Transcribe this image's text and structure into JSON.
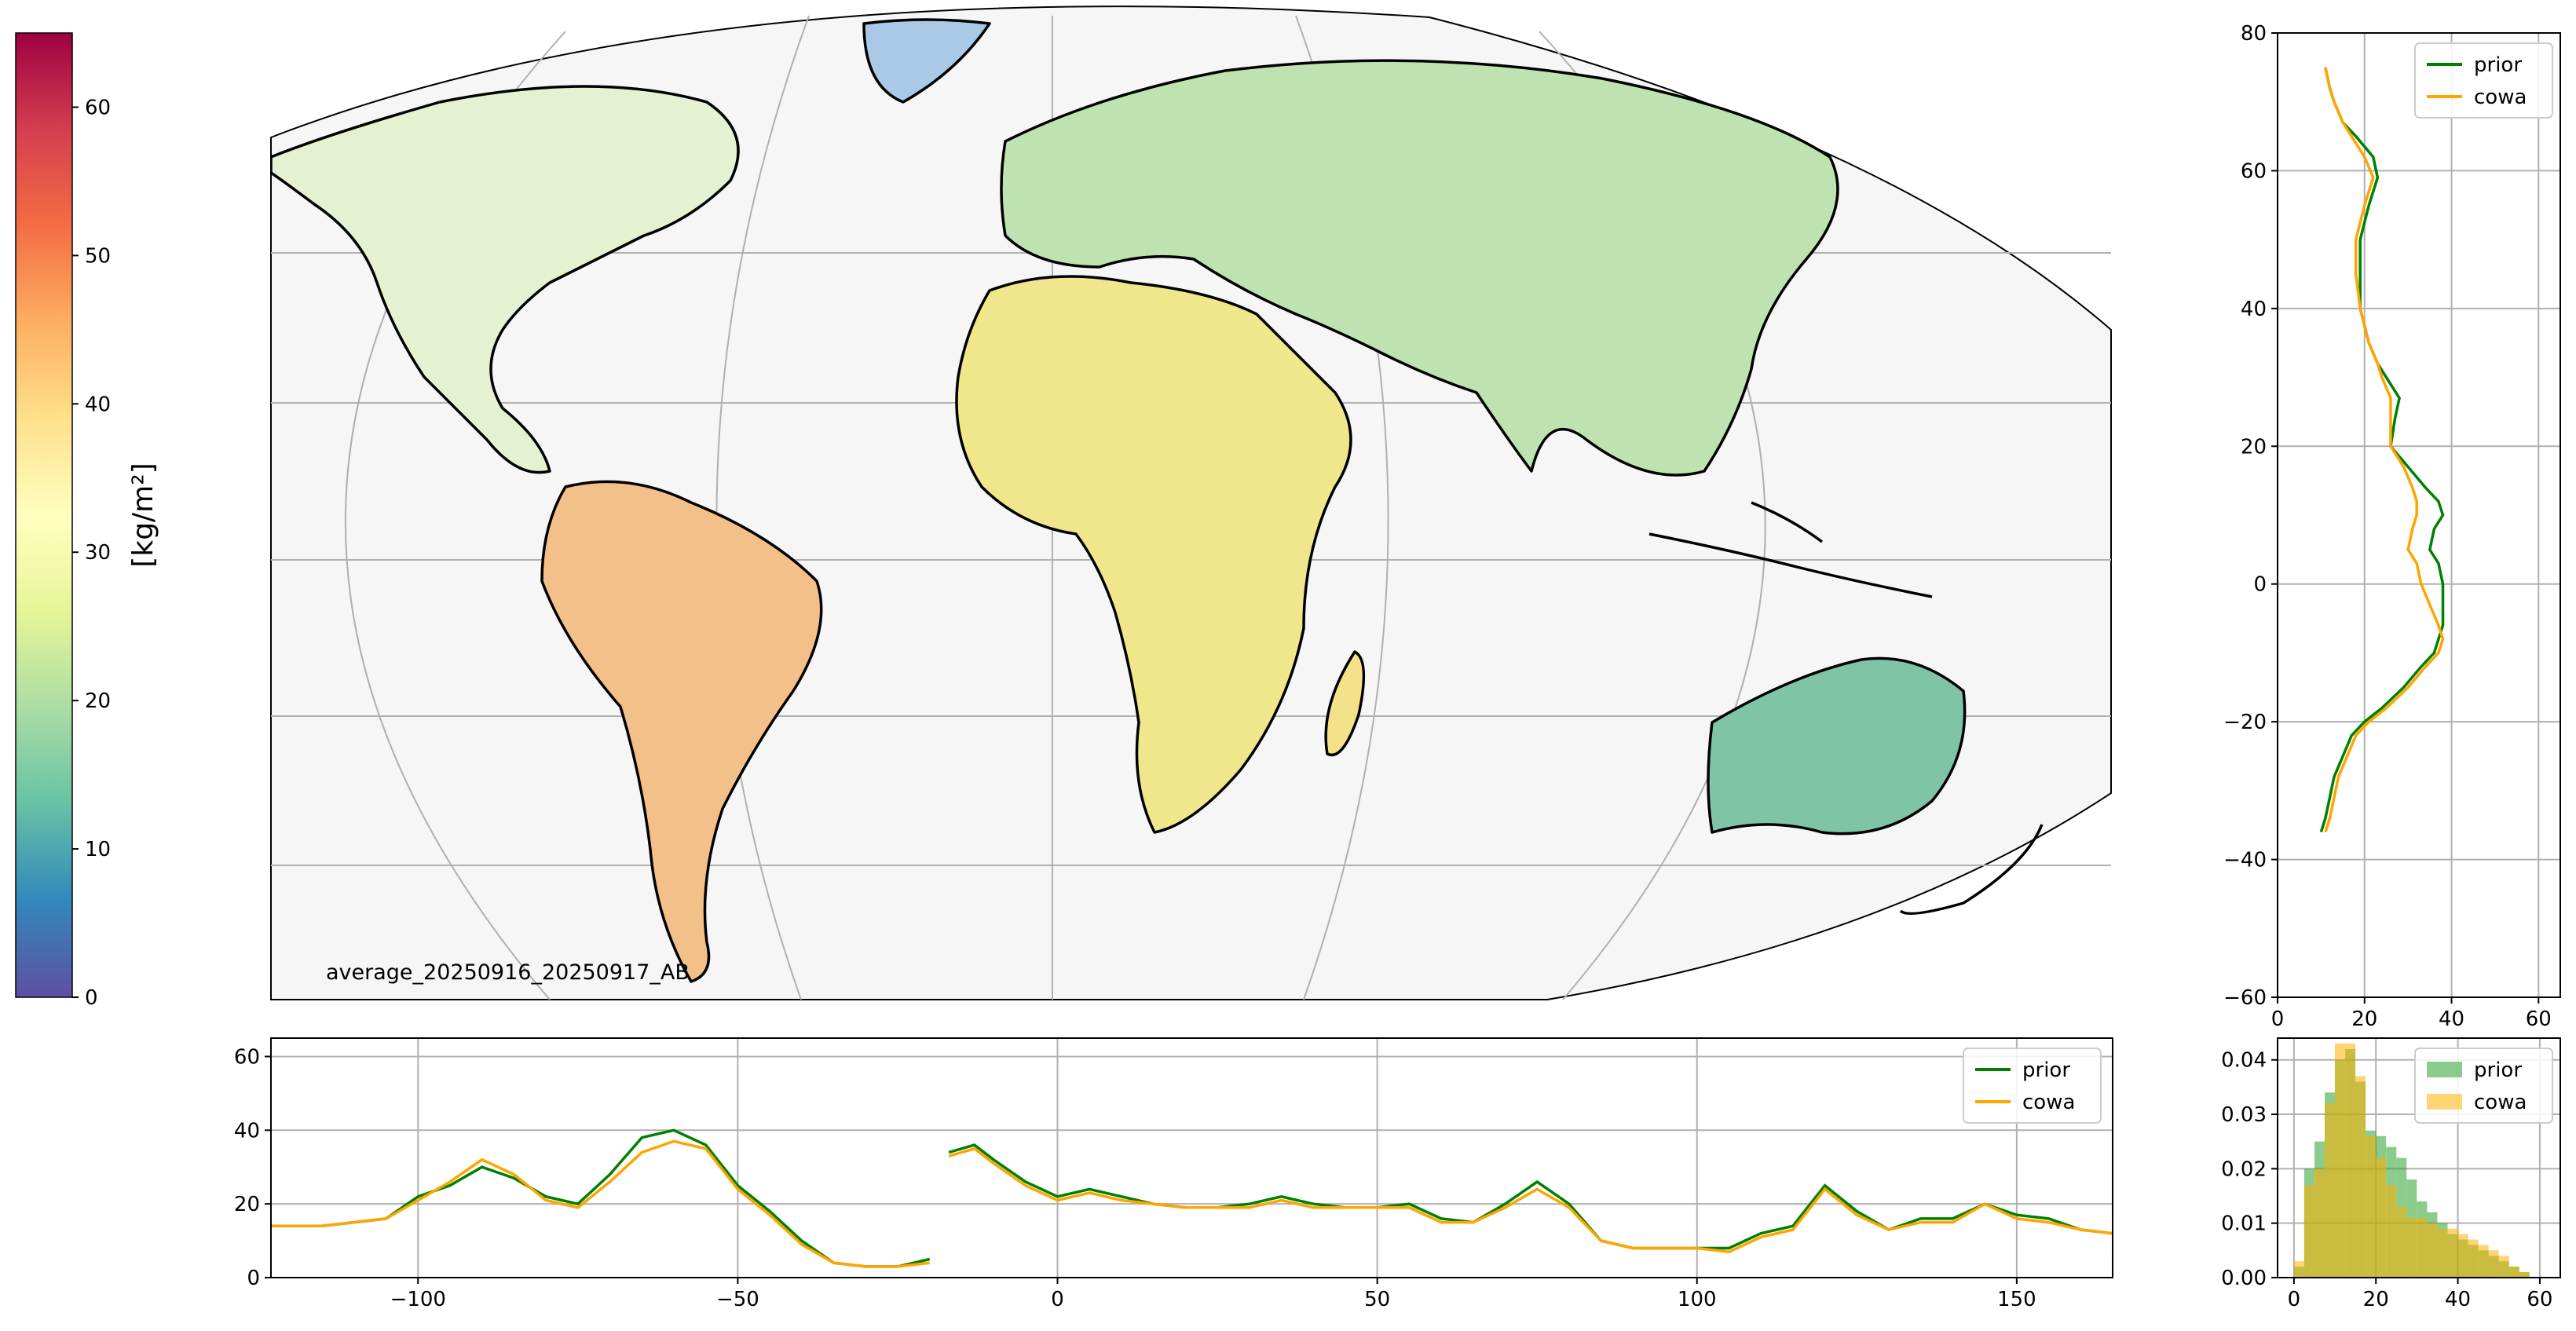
{
  "colorbar": {
    "label": "[kg/m²]",
    "ticks": [
      "0",
      "10",
      "20",
      "30",
      "40",
      "50",
      "60"
    ],
    "range": [
      0,
      65
    ],
    "colormap": [
      "#5e4fa2",
      "#3288bd",
      "#66c2a5",
      "#abdda4",
      "#e6f598",
      "#ffffbf",
      "#fee08b",
      "#fdae61",
      "#f46d43",
      "#d53e4f",
      "#9e0142"
    ]
  },
  "map": {
    "caption": "average_20250916_20250917_AB"
  },
  "chart_data": [
    {
      "type": "line",
      "name": "latitude-profile",
      "orientation": "vertical",
      "ylim": [
        -60,
        80
      ],
      "xlim": [
        0,
        65
      ],
      "yticks": [
        "−60",
        "−40",
        "−20",
        "0",
        "20",
        "40",
        "60",
        "80"
      ],
      "xticks": [
        "0",
        "20",
        "40",
        "60"
      ],
      "legend_position": "top-right",
      "grid": true,
      "lat": [
        75,
        72,
        70,
        67,
        65,
        62,
        59,
        55,
        50,
        45,
        40,
        35,
        32,
        30,
        27,
        24,
        20,
        17,
        14,
        12,
        10,
        8,
        5,
        3,
        0,
        -3,
        -6,
        -8,
        -10,
        -12,
        -15,
        -18,
        -20,
        -22,
        -25,
        -28,
        -31,
        -34,
        -36
      ],
      "series": [
        {
          "name": "prior",
          "color": "#008000",
          "values": [
            11,
            12,
            13,
            15,
            18,
            22,
            23,
            21,
            19,
            19,
            19,
            21,
            23,
            25,
            28,
            27,
            26,
            30,
            34,
            37,
            38,
            36,
            35,
            37,
            38,
            38,
            38,
            37,
            36,
            33,
            29,
            24,
            20,
            17,
            15,
            13,
            12,
            11,
            10
          ]
        },
        {
          "name": "cowa",
          "color": "#ffa500",
          "values": [
            11,
            12,
            13,
            15,
            17,
            20,
            22,
            20,
            18,
            18,
            19,
            21,
            23,
            24,
            26,
            26,
            26,
            29,
            31,
            32,
            32,
            31,
            30,
            32,
            33,
            35,
            37,
            38,
            37,
            34,
            30,
            25,
            21,
            18,
            16,
            14,
            13,
            12,
            11
          ]
        }
      ]
    },
    {
      "type": "line",
      "name": "longitude-profile",
      "xlim": [
        -123,
        165
      ],
      "ylim": [
        0,
        65
      ],
      "xticks": [
        "−100",
        "−50",
        "0",
        "50",
        "100",
        "150"
      ],
      "yticks": [
        "0",
        "20",
        "40",
        "60"
      ],
      "legend_position": "top-right",
      "grid": true,
      "x": [
        -123,
        -115,
        -110,
        -105,
        -100,
        -95,
        -90,
        -85,
        -80,
        -75,
        -70,
        -65,
        -60,
        -55,
        -50,
        -45,
        -40,
        -35,
        -30,
        -25,
        -20,
        null,
        -17,
        -13,
        -10,
        -5,
        0,
        5,
        10,
        15,
        20,
        25,
        30,
        35,
        40,
        45,
        50,
        55,
        60,
        65,
        70,
        75,
        80,
        85,
        90,
        95,
        100,
        105,
        110,
        115,
        120,
        125,
        130,
        135,
        140,
        145,
        150,
        155,
        160,
        165
      ],
      "series": [
        {
          "name": "prior",
          "color": "#008000",
          "values": [
            14,
            14,
            15,
            16,
            22,
            25,
            30,
            27,
            22,
            20,
            28,
            38,
            40,
            36,
            25,
            18,
            10,
            4,
            3,
            3,
            5,
            null,
            34,
            36,
            32,
            26,
            22,
            24,
            22,
            20,
            19,
            19,
            20,
            22,
            20,
            19,
            19,
            20,
            16,
            15,
            20,
            26,
            20,
            10,
            8,
            8,
            8,
            8,
            12,
            14,
            25,
            18,
            13,
            16,
            16,
            20,
            17,
            16,
            13,
            12
          ]
        },
        {
          "name": "cowa",
          "color": "#ffa500",
          "values": [
            14,
            14,
            15,
            16,
            21,
            26,
            32,
            28,
            21,
            19,
            26,
            34,
            37,
            35,
            24,
            17,
            9,
            4,
            3,
            3,
            4,
            null,
            33,
            35,
            31,
            25,
            21,
            23,
            21,
            20,
            19,
            19,
            19,
            21,
            19,
            19,
            19,
            19,
            15,
            15,
            19,
            24,
            19,
            10,
            8,
            8,
            8,
            7,
            11,
            13,
            24,
            17,
            13,
            15,
            15,
            20,
            16,
            15,
            13,
            12
          ]
        }
      ]
    },
    {
      "type": "bar",
      "name": "histogram",
      "xlim": [
        -4,
        65
      ],
      "ylim": [
        0,
        0.044
      ],
      "xticks": [
        "0",
        "20",
        "40",
        "60"
      ],
      "yticks": [
        "0.00",
        "0.01",
        "0.02",
        "0.03",
        "0.04"
      ],
      "legend_position": "top-right",
      "grid": true,
      "bin_edges": [
        0,
        2.5,
        5,
        7.5,
        10,
        12.5,
        15,
        17.5,
        20,
        22.5,
        25,
        27.5,
        30,
        32.5,
        35,
        37.5,
        40,
        42.5,
        45,
        47.5,
        50,
        52.5,
        55,
        57.5,
        60
      ],
      "series": [
        {
          "name": "prior",
          "color": "#2ca02c",
          "values": [
            0.002,
            0.02,
            0.025,
            0.034,
            0.04,
            0.042,
            0.036,
            0.027,
            0.026,
            0.024,
            0.022,
            0.018,
            0.014,
            0.012,
            0.01,
            0.008,
            0.007,
            0.006,
            0.005,
            0.004,
            0.003,
            0.002,
            0.001,
            0.0,
            0.0
          ]
        },
        {
          "name": "cowa",
          "color": "#ffb000",
          "values": [
            0.003,
            0.017,
            0.02,
            0.032,
            0.043,
            0.043,
            0.037,
            0.026,
            0.022,
            0.017,
            0.013,
            0.011,
            0.011,
            0.01,
            0.009,
            0.009,
            0.008,
            0.007,
            0.006,
            0.005,
            0.004,
            0.002,
            0.001,
            0.0,
            0.0
          ]
        }
      ]
    }
  ]
}
